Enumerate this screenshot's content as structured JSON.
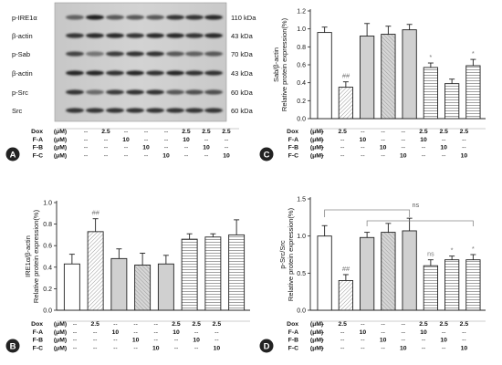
{
  "blot": {
    "left_labels": [
      "p-IRE1α",
      "β-actin",
      "p-Sab",
      "β-actin",
      "p-Src",
      "Src"
    ],
    "right_labels": [
      "110 kDa",
      "43 kDa",
      "70 kDa",
      "43 kDa",
      "60 kDa",
      "60 kDa"
    ]
  },
  "treatment_table": {
    "rows": [
      {
        "name": "Dox",
        "unit": "(μM)",
        "cells": [
          "--",
          "2.5",
          "--",
          "--",
          "--",
          "2.5",
          "2.5",
          "2.5"
        ]
      },
      {
        "name": "F-A",
        "unit": "(μM)",
        "cells": [
          "--",
          "--",
          "10",
          "--",
          "--",
          "10",
          "--",
          "--"
        ]
      },
      {
        "name": "F-B",
        "unit": "(μM)",
        "cells": [
          "--",
          "--",
          "--",
          "10",
          "--",
          "--",
          "10",
          "--"
        ]
      },
      {
        "name": "F-C",
        "unit": "(μM)",
        "cells": [
          "--",
          "--",
          "--",
          "--",
          "10",
          "--",
          "--",
          "10"
        ]
      }
    ]
  },
  "panels": [
    {
      "letter": "A",
      "color": "#222222"
    },
    {
      "letter": "B",
      "color": "#222222"
    },
    {
      "letter": "C",
      "color": "#222222"
    },
    {
      "letter": "D",
      "color": "#222222"
    }
  ],
  "bar_styles": [
    "white",
    "hatch-light",
    "gray",
    "gray-dense",
    "gray",
    "hlines",
    "hlines",
    "hlines"
  ],
  "chart_data": [
    {
      "panel": "C",
      "type": "bar",
      "ylabel_top": "Sab/β-actin",
      "ylabel": "Relative protein expression(%)",
      "ylim": [
        0,
        1.2
      ],
      "ticks": [
        "0.0",
        "0.2",
        "0.4",
        "0.6",
        "0.8",
        "1.0",
        "1.2"
      ],
      "values": [
        0.96,
        0.35,
        0.92,
        0.94,
        0.99,
        0.57,
        0.39,
        0.59
      ],
      "errors": [
        0.06,
        0.06,
        0.14,
        0.09,
        0.06,
        0.05,
        0.05,
        0.07
      ],
      "annotations": [
        "",
        "##",
        "",
        "",
        "",
        "*",
        "",
        "*"
      ],
      "bracket": null
    },
    {
      "panel": "B",
      "type": "bar",
      "ylabel_top": "IRE1α/β-actin",
      "ylabel": "Relative protein expression(%)",
      "ylim": [
        0,
        1.0
      ],
      "ticks": [
        "0.0",
        "0.2",
        "0.4",
        "0.6",
        "0.8",
        "1.0"
      ],
      "values": [
        0.43,
        0.73,
        0.48,
        0.42,
        0.43,
        0.66,
        0.68,
        0.7
      ],
      "errors": [
        0.09,
        0.12,
        0.09,
        0.11,
        0.08,
        0.05,
        0.03,
        0.14
      ],
      "annotations": [
        "",
        "##",
        "",
        "",
        "",
        "",
        "",
        ""
      ],
      "bracket": null
    },
    {
      "panel": "D",
      "type": "bar",
      "ylabel_top": "p-Src/Src",
      "ylabel": "Relative protein expression(%)",
      "ylim": [
        0,
        1.5
      ],
      "ticks": [
        "0.0",
        "0.5",
        "1.0",
        "1.5"
      ],
      "values": [
        1.0,
        0.4,
        0.98,
        1.05,
        1.07,
        0.6,
        0.68,
        0.68
      ],
      "errors": [
        0.14,
        0.08,
        0.07,
        0.12,
        0.17,
        0.08,
        0.05,
        0.07
      ],
      "annotations": [
        "",
        "##",
        "",
        "",
        "",
        "ns",
        "*",
        "*"
      ],
      "bracket": {
        "label": "ns"
      }
    }
  ]
}
